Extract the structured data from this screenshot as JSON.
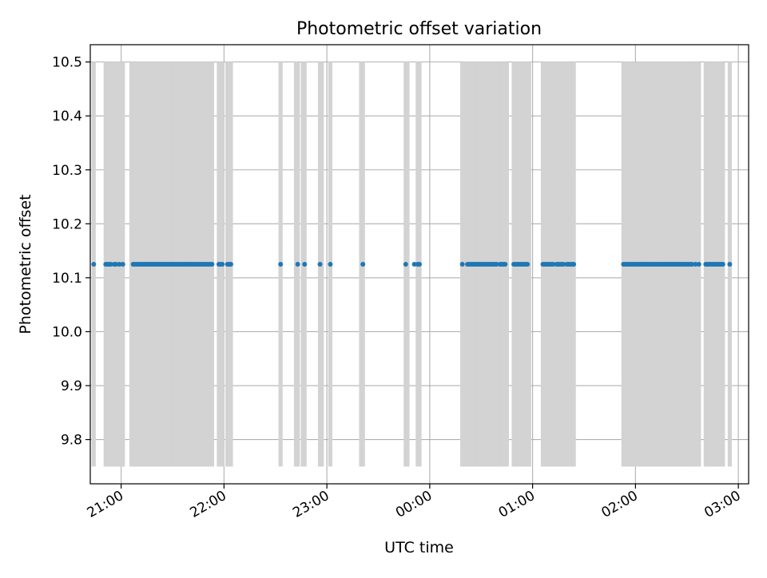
{
  "chart_data": {
    "type": "scatter",
    "title": "Photometric offset variation",
    "xlabel": "UTC time",
    "ylabel": "Photometric offset",
    "x_axis_kind": "time",
    "xlim": [
      "20:42",
      "03:06"
    ],
    "ylim": [
      9.718,
      10.532
    ],
    "grid": true,
    "x_ticks": [
      {
        "value": "21:00",
        "label": "21:00"
      },
      {
        "value": "22:00",
        "label": "22:00"
      },
      {
        "value": "23:00",
        "label": "23:00"
      },
      {
        "value": "00:00",
        "label": "00:00"
      },
      {
        "value": "01:00",
        "label": "01:00"
      },
      {
        "value": "02:00",
        "label": "02:00"
      },
      {
        "value": "03:00",
        "label": "03:00"
      }
    ],
    "y_ticks": [
      {
        "value": 9.8,
        "label": "9.8"
      },
      {
        "value": 9.9,
        "label": "9.9"
      },
      {
        "value": 10.0,
        "label": "10.0"
      },
      {
        "value": 10.1,
        "label": "10.1"
      },
      {
        "value": 10.2,
        "label": "10.2"
      },
      {
        "value": 10.3,
        "label": "10.3"
      },
      {
        "value": 10.4,
        "label": "10.4"
      },
      {
        "value": 10.5,
        "label": "10.5"
      }
    ],
    "bar_range": [
      9.75,
      10.5
    ],
    "bar_color": "#d3d3d3",
    "point_color": "#1f77b4",
    "series": [
      {
        "y": 10.125,
        "x": [
          "20:44",
          "20:51",
          "20:52",
          "20:53",
          "20:54",
          "20:56",
          "20:57",
          "20:59",
          "21:01",
          "21:07",
          "21:08",
          "21:09",
          "21:10",
          "21:11",
          "21:12",
          "21:13",
          "21:14",
          "21:15",
          "21:16",
          "21:17",
          "21:18",
          "21:19",
          "21:20",
          "21:21",
          "21:22",
          "21:23",
          "21:24",
          "21:25",
          "21:26",
          "21:27",
          "21:28",
          "21:29",
          "21:30",
          "21:31",
          "21:32",
          "21:33",
          "21:34",
          "21:35",
          "21:36",
          "21:37",
          "21:38",
          "21:39",
          "21:40",
          "21:41",
          "21:42",
          "21:43",
          "21:44",
          "21:45",
          "21:46",
          "21:47",
          "21:48",
          "21:49",
          "21:50",
          "21:51",
          "21:52",
          "21:53",
          "21:57",
          "21:58",
          "21:59",
          "22:02",
          "22:03",
          "22:04",
          "22:33",
          "22:43",
          "22:47",
          "22:56",
          "23:02",
          "23:21",
          "23:46",
          "23:51",
          "23:53",
          "23:54",
          "00:19",
          "00:22",
          "00:23",
          "00:24",
          "00:25",
          "00:26",
          "00:27",
          "00:28",
          "00:29",
          "00:30",
          "00:31",
          "00:32",
          "00:33",
          "00:34",
          "00:35",
          "00:36",
          "00:37",
          "00:38",
          "00:39",
          "00:41",
          "00:42",
          "00:43",
          "00:44",
          "00:49",
          "00:50",
          "00:51",
          "00:52",
          "00:53",
          "00:54",
          "00:55",
          "00:56",
          "00:57",
          "01:06",
          "01:07",
          "01:08",
          "01:09",
          "01:10",
          "01:11",
          "01:12",
          "01:14",
          "01:15",
          "01:16",
          "01:17",
          "01:18",
          "01:20",
          "01:21",
          "01:22",
          "01:23",
          "01:24",
          "01:53",
          "01:54",
          "01:55",
          "01:56",
          "01:57",
          "01:58",
          "01:59",
          "02:00",
          "02:01",
          "02:02",
          "02:03",
          "02:04",
          "02:05",
          "02:06",
          "02:07",
          "02:08",
          "02:09",
          "02:10",
          "02:11",
          "02:12",
          "02:13",
          "02:14",
          "02:15",
          "02:16",
          "02:17",
          "02:18",
          "02:19",
          "02:20",
          "02:21",
          "02:22",
          "02:23",
          "02:24",
          "02:25",
          "02:26",
          "02:27",
          "02:28",
          "02:29",
          "02:30",
          "02:31",
          "02:32",
          "02:33",
          "02:35",
          "02:37",
          "02:41",
          "02:42",
          "02:43",
          "02:44",
          "02:45",
          "02:46",
          "02:47",
          "02:48",
          "02:49",
          "02:50",
          "02:51",
          "02:55"
        ]
      }
    ],
    "bars_x": [
      "20:44",
      "20:51",
      "20:52",
      "20:53",
      "20:54",
      "20:55",
      "20:56",
      "20:57",
      "20:58",
      "20:59",
      "21:00",
      "21:01",
      "21:06",
      "21:07",
      "21:08",
      "21:09",
      "21:10",
      "21:11",
      "21:12",
      "21:13",
      "21:14",
      "21:15",
      "21:16",
      "21:17",
      "21:18",
      "21:19",
      "21:20",
      "21:21",
      "21:22",
      "21:23",
      "21:24",
      "21:25",
      "21:26",
      "21:27",
      "21:28",
      "21:29",
      "21:30",
      "21:31",
      "21:32",
      "21:33",
      "21:34",
      "21:35",
      "21:36",
      "21:37",
      "21:38",
      "21:39",
      "21:40",
      "21:41",
      "21:42",
      "21:43",
      "21:44",
      "21:45",
      "21:46",
      "21:47",
      "21:48",
      "21:49",
      "21:50",
      "21:51",
      "21:52",
      "21:53",
      "21:57",
      "21:58",
      "21:59",
      "22:02",
      "22:03",
      "22:04",
      "22:33",
      "22:42",
      "22:43",
      "22:46",
      "22:47",
      "22:56",
      "22:57",
      "23:02",
      "23:20",
      "23:21",
      "23:46",
      "23:47",
      "23:53",
      "23:54",
      "00:19",
      "00:20",
      "00:21",
      "00:22",
      "00:23",
      "00:24",
      "00:25",
      "00:26",
      "00:27",
      "00:28",
      "00:29",
      "00:30",
      "00:31",
      "00:32",
      "00:33",
      "00:34",
      "00:35",
      "00:36",
      "00:37",
      "00:38",
      "00:39",
      "00:41",
      "00:42",
      "00:43",
      "00:44",
      "00:45",
      "00:49",
      "00:50",
      "00:51",
      "00:52",
      "00:53",
      "00:54",
      "00:55",
      "00:56",
      "00:57",
      "00:58",
      "01:06",
      "01:07",
      "01:08",
      "01:09",
      "01:10",
      "01:11",
      "01:12",
      "01:13",
      "01:14",
      "01:15",
      "01:16",
      "01:17",
      "01:18",
      "01:19",
      "01:20",
      "01:21",
      "01:22",
      "01:23",
      "01:24",
      "01:53",
      "01:54",
      "01:55",
      "01:56",
      "01:57",
      "01:58",
      "01:59",
      "02:00",
      "02:01",
      "02:02",
      "02:03",
      "02:04",
      "02:05",
      "02:06",
      "02:07",
      "02:08",
      "02:09",
      "02:10",
      "02:11",
      "02:12",
      "02:13",
      "02:14",
      "02:15",
      "02:16",
      "02:17",
      "02:18",
      "02:19",
      "02:20",
      "02:21",
      "02:22",
      "02:23",
      "02:24",
      "02:25",
      "02:26",
      "02:27",
      "02:28",
      "02:29",
      "02:30",
      "02:31",
      "02:32",
      "02:33",
      "02:35",
      "02:37",
      "02:41",
      "02:42",
      "02:43",
      "02:44",
      "02:45",
      "02:46",
      "02:47",
      "02:48",
      "02:49",
      "02:50",
      "02:51",
      "02:55"
    ]
  }
}
